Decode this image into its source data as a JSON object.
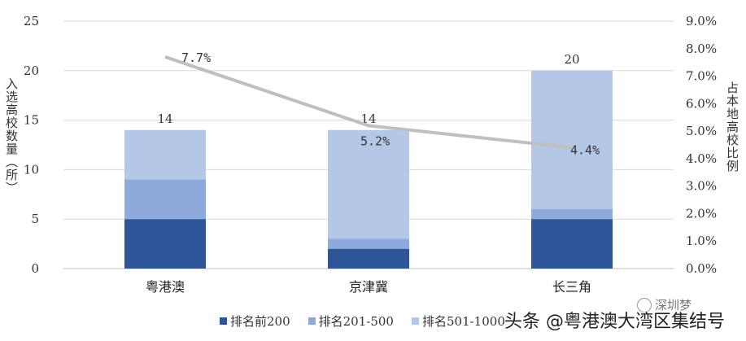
{
  "chart_data": {
    "type": "bar",
    "stacked": true,
    "categories": [
      "粤港澳",
      "京津冀",
      "长三角"
    ],
    "series": [
      {
        "name": "排名前200",
        "values": [
          5,
          2,
          5
        ],
        "color": "#2E5597"
      },
      {
        "name": "排名201-500",
        "values": [
          4,
          1,
          1
        ],
        "color": "#8EAADC"
      },
      {
        "name": "排名501-1000",
        "values": [
          5,
          11,
          14
        ],
        "color": "#B4C7E7"
      }
    ],
    "totals": [
      14,
      14,
      20
    ],
    "total_labels": [
      "14",
      "14",
      "20"
    ],
    "line": {
      "values": [
        7.7,
        5.2,
        4.4
      ],
      "labels": [
        "7.7%",
        "5.2%",
        "4.4%"
      ],
      "color": "#BFBFBF",
      "axis": "right"
    },
    "ylabel": "入选高校数量（所）",
    "ylabel_right": "占本地高校比例",
    "ylim": [
      0,
      25
    ],
    "y_ticks": [
      "0",
      "5",
      "10",
      "15",
      "20",
      "25"
    ],
    "ylim_right": [
      0,
      9
    ],
    "y_ticks_right": [
      "0.0%",
      "1.0%",
      "2.0%",
      "3.0%",
      "4.0%",
      "5.0%",
      "6.0%",
      "7.0%",
      "8.0%",
      "9.0%"
    ],
    "grid": true,
    "legend_position": "bottom"
  },
  "legend": {
    "items": [
      {
        "label": "排名前200",
        "color": "#2E5597"
      },
      {
        "label": "排名201-500",
        "color": "#8EAADC"
      },
      {
        "label": "排名501-1000",
        "color": "#B4C7E7"
      }
    ]
  },
  "watermark": {
    "text": "头条 @粤港澳大湾区集结号",
    "logo_text": "深圳梦"
  }
}
